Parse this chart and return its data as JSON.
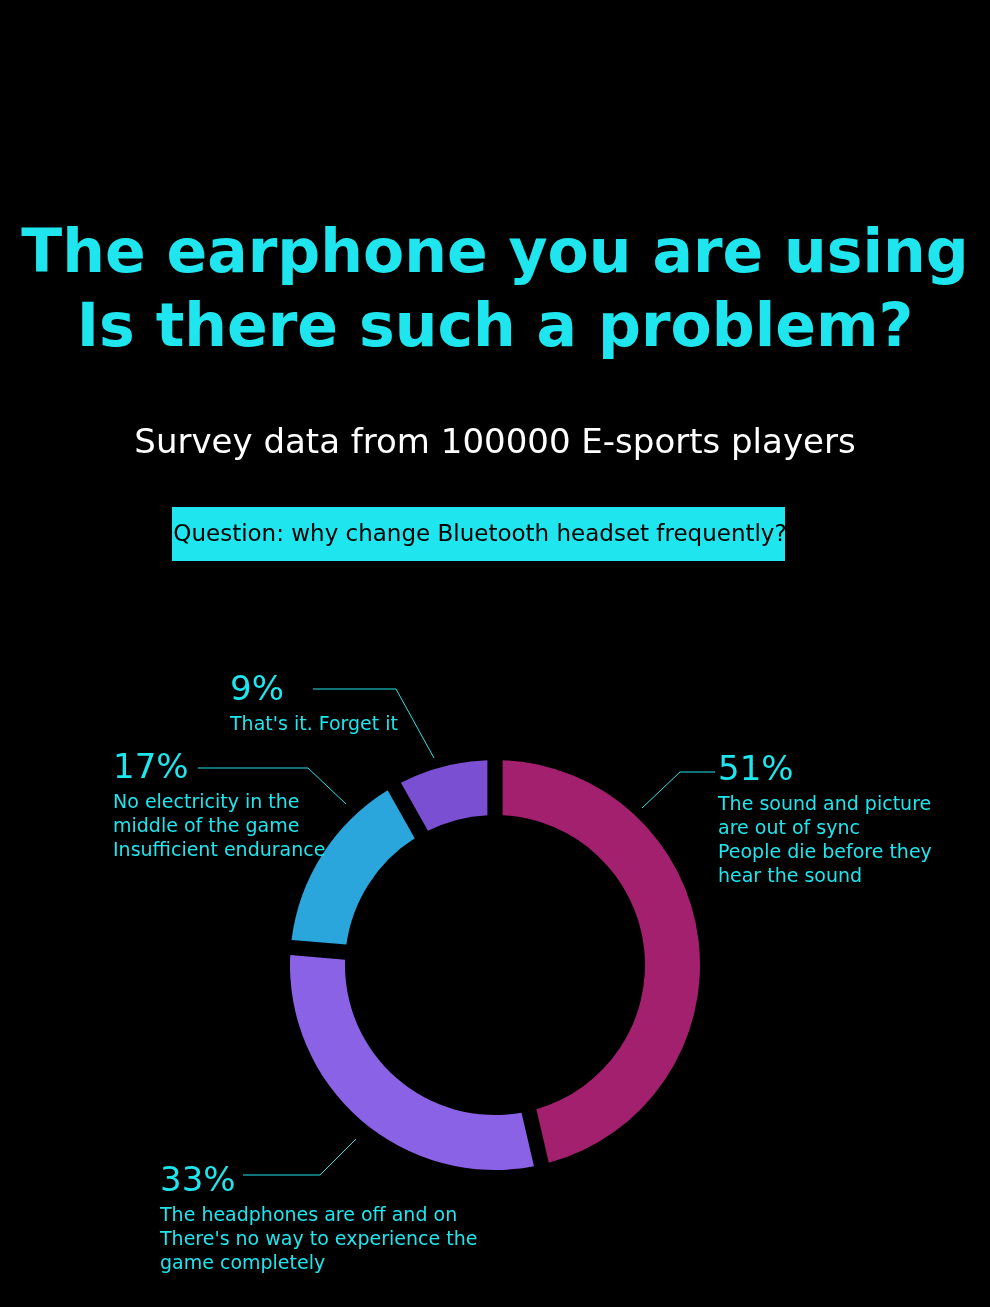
{
  "chart_data": {
    "type": "donut",
    "title": "The earphone you are using\nIs there such a problem?",
    "subtitle": "Survey data from 100000 E-sports players",
    "annotations": [
      "Question: why change Bluetooth headset frequently?"
    ],
    "categories": [
      "The sound and picture\nare out of sync\nPeople die before they\nhear the sound",
      "The headphones are off and on\nThere's no way to experience the\n game completely",
      "No electricity in the\nmiddle of the game\nInsufficient endurance",
      "That's it. Forget it"
    ],
    "values": [
      51,
      33,
      17,
      9
    ],
    "value_labels": [
      "51%",
      "33%",
      "17%",
      "9%"
    ],
    "colors": [
      "#a3206f",
      "#8a62e6",
      "#2aa6dc",
      "#7b4fd2"
    ]
  }
}
